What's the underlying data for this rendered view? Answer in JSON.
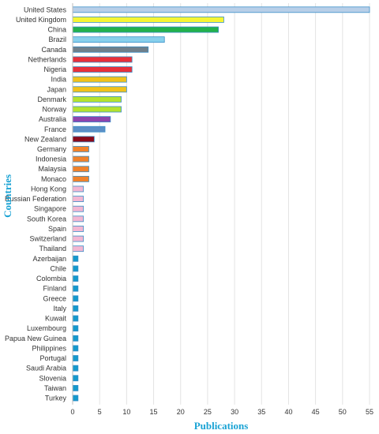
{
  "chart_data": {
    "type": "bar",
    "orientation": "horizontal",
    "title": "",
    "xlabel": "Publications",
    "ylabel": "Countries",
    "xlim": [
      0,
      55
    ],
    "xticks": [
      0,
      5,
      10,
      15,
      20,
      25,
      30,
      35,
      40,
      45,
      50,
      55
    ],
    "grid": "vertical",
    "categories": [
      "United States",
      "United Kingdom",
      "China",
      "Brazil",
      "Canada",
      "Netherlands",
      "Nigeria",
      "India",
      "Japan",
      "Denmark",
      "Norway",
      "Australia",
      "France",
      "New Zealand",
      "Germany",
      "Indonesia",
      "Malaysia",
      "Monaco",
      "Hong Kong",
      "Russian Federation",
      "Singapore",
      "South Korea",
      "Spain",
      "Switzerland",
      "Thailand",
      "Azerbaijan",
      "Chile",
      "Colombia",
      "Finland",
      "Greece",
      "Italy",
      "Kuwait",
      "Luxembourg",
      "Papua New Guinea",
      "Philippines",
      "Portugal",
      "Saudi Arabia",
      "Slovenia",
      "Taiwan",
      "Turkey"
    ],
    "values": [
      55,
      28,
      27,
      17,
      14,
      11,
      11,
      10,
      10,
      9,
      9,
      7,
      6,
      4,
      3,
      3,
      3,
      3,
      2,
      2,
      2,
      2,
      2,
      2,
      2,
      1,
      1,
      1,
      1,
      1,
      1,
      1,
      1,
      1,
      1,
      1,
      1,
      1,
      1,
      1
    ],
    "bar_colors": [
      "#b8cfe8",
      "#f5f534",
      "#22b14c",
      "#88d0ec",
      "#6f7f8a",
      "#e8303a",
      "#e8303a",
      "#f1c21b",
      "#f1c21b",
      "#b5e22e",
      "#b5e22e",
      "#8e44ad",
      "#5b8fc7",
      "#8b0a1a",
      "#f0822b",
      "#f0822b",
      "#f0822b",
      "#f0822b",
      "#f3b6d2",
      "#f3b6d2",
      "#f3b6d2",
      "#f3b6d2",
      "#f3b6d2",
      "#f3b6d2",
      "#f3b6d2",
      "#1499cc",
      "#1499cc",
      "#1499cc",
      "#1499cc",
      "#1499cc",
      "#1499cc",
      "#1499cc",
      "#1499cc",
      "#1499cc",
      "#1499cc",
      "#1499cc",
      "#1499cc",
      "#1499cc",
      "#1499cc",
      "#1499cc"
    ],
    "bar_border_color": "#3a8fc8",
    "grid_color": "#e3e3e3",
    "axis_title_color": "#1aa3d4"
  }
}
